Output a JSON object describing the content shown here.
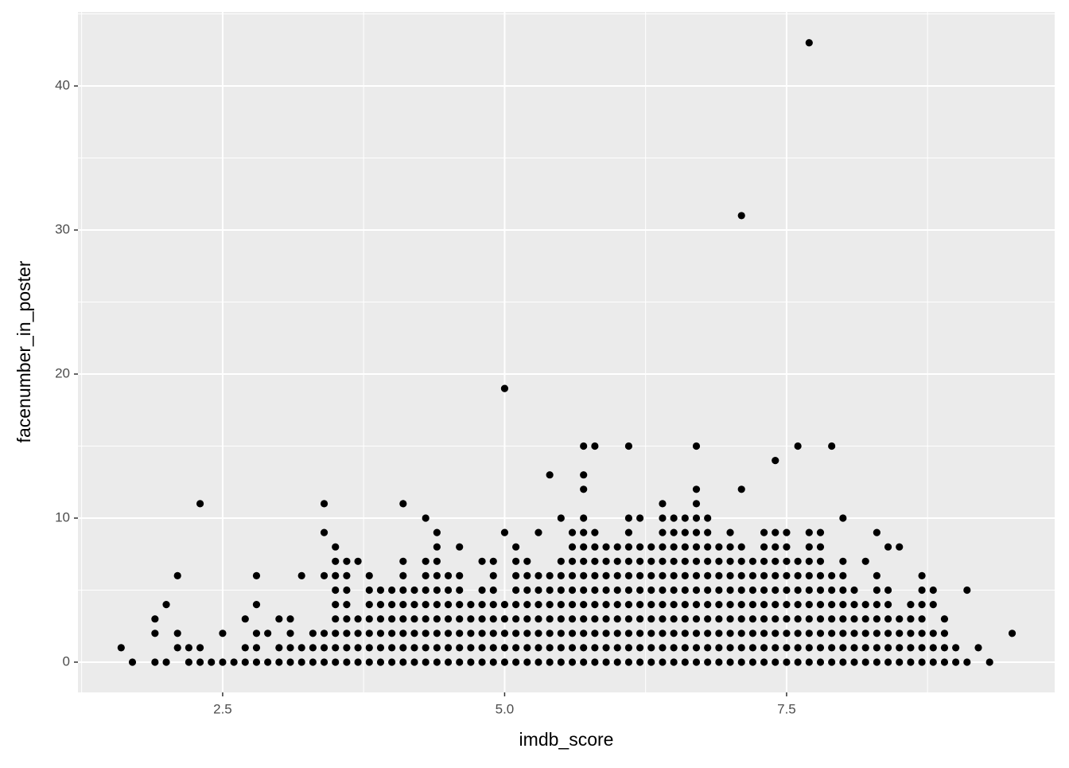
{
  "chart_data": {
    "type": "scatter",
    "x_label": "imdb_score",
    "y_label": "facenumber_in_poster",
    "xlim": [
      1.217,
      9.877
    ],
    "ylim": [
      -2.1,
      45.14
    ],
    "xticks": [
      2.5,
      {
        "value": 5,
        "label": "5.0"
      },
      7.5
    ],
    "yticks": [
      0,
      10,
      20,
      30,
      40
    ],
    "grid": true,
    "color": "#000000",
    "x": [
      1.6,
      1.7,
      1.9,
      1.9,
      1.9,
      2.0,
      2.0,
      2.1,
      2.1,
      2.1,
      2.2,
      2.2,
      2.3,
      2.3,
      2.3,
      2.4,
      2.5,
      2.5,
      2.6,
      2.7,
      2.7,
      2.7,
      2.8,
      2.8,
      2.8,
      2.8,
      2.8,
      2.9,
      2.9,
      3.0,
      3.0,
      3.0,
      3.1,
      3.1,
      3.1,
      3.1,
      3.2,
      3.2,
      3.2,
      3.3,
      3.3,
      3.3,
      3.4,
      3.4,
      3.4,
      3.4,
      3.4,
      3.4,
      3.5,
      3.5,
      3.5,
      3.5,
      3.5,
      3.5,
      3.5,
      3.5,
      3.5,
      3.6,
      3.6,
      3.6,
      3.6,
      3.6,
      3.6,
      3.6,
      3.6,
      3.7,
      3.7,
      3.7,
      3.7,
      3.7,
      3.8,
      3.8,
      3.8,
      3.8,
      3.8,
      3.8,
      3.8,
      3.9,
      3.9,
      3.9,
      3.9,
      3.9,
      3.9,
      4.0,
      4.0,
      4.0,
      4.0,
      4.0,
      4.0,
      4.1,
      4.1,
      4.1,
      4.1,
      4.1,
      4.1,
      4.1,
      4.1,
      4.1,
      4.2,
      4.2,
      4.2,
      4.2,
      4.2,
      4.2,
      4.3,
      4.3,
      4.3,
      4.3,
      4.3,
      4.3,
      4.3,
      4.3,
      4.3,
      4.4,
      4.4,
      4.4,
      4.4,
      4.4,
      4.4,
      4.4,
      4.4,
      4.4,
      4.4,
      4.5,
      4.5,
      4.5,
      4.5,
      4.5,
      4.5,
      4.5,
      4.6,
      4.6,
      4.6,
      4.6,
      4.6,
      4.6,
      4.6,
      4.6,
      4.7,
      4.7,
      4.7,
      4.7,
      4.7,
      4.8,
      4.8,
      4.8,
      4.8,
      4.8,
      4.8,
      4.8,
      4.9,
      4.9,
      4.9,
      4.9,
      4.9,
      4.9,
      4.9,
      4.9,
      5.0,
      5.0,
      5.0,
      5.0,
      5.0,
      5.0,
      5.0,
      5.1,
      5.1,
      5.1,
      5.1,
      5.1,
      5.1,
      5.1,
      5.1,
      5.1,
      5.2,
      5.2,
      5.2,
      5.2,
      5.2,
      5.2,
      5.2,
      5.2,
      5.3,
      5.3,
      5.3,
      5.3,
      5.3,
      5.3,
      5.3,
      5.3,
      5.4,
      5.4,
      5.4,
      5.4,
      5.4,
      5.4,
      5.4,
      5.4,
      5.5,
      5.5,
      5.5,
      5.5,
      5.5,
      5.5,
      5.5,
      5.5,
      5.5,
      5.6,
      5.6,
      5.6,
      5.6,
      5.6,
      5.6,
      5.6,
      5.6,
      5.6,
      5.6,
      5.7,
      5.7,
      5.7,
      5.7,
      5.7,
      5.7,
      5.7,
      5.7,
      5.7,
      5.7,
      5.7,
      5.7,
      5.7,
      5.7,
      5.8,
      5.8,
      5.8,
      5.8,
      5.8,
      5.8,
      5.8,
      5.8,
      5.8,
      5.8,
      5.8,
      5.9,
      5.9,
      5.9,
      5.9,
      5.9,
      5.9,
      5.9,
      5.9,
      5.9,
      6.0,
      6.0,
      6.0,
      6.0,
      6.0,
      6.0,
      6.0,
      6.0,
      6.0,
      6.1,
      6.1,
      6.1,
      6.1,
      6.1,
      6.1,
      6.1,
      6.1,
      6.1,
      6.1,
      6.1,
      6.1,
      6.2,
      6.2,
      6.2,
      6.2,
      6.2,
      6.2,
      6.2,
      6.2,
      6.2,
      6.2,
      6.3,
      6.3,
      6.3,
      6.3,
      6.3,
      6.3,
      6.3,
      6.3,
      6.3,
      6.4,
      6.4,
      6.4,
      6.4,
      6.4,
      6.4,
      6.4,
      6.4,
      6.4,
      6.4,
      6.4,
      6.4,
      6.5,
      6.5,
      6.5,
      6.5,
      6.5,
      6.5,
      6.5,
      6.5,
      6.5,
      6.5,
      6.5,
      6.6,
      6.6,
      6.6,
      6.6,
      6.6,
      6.6,
      6.6,
      6.6,
      6.6,
      6.6,
      6.6,
      6.7,
      6.7,
      6.7,
      6.7,
      6.7,
      6.7,
      6.7,
      6.7,
      6.7,
      6.7,
      6.7,
      6.7,
      6.7,
      6.7,
      6.8,
      6.8,
      6.8,
      6.8,
      6.8,
      6.8,
      6.8,
      6.8,
      6.8,
      6.8,
      6.8,
      6.9,
      6.9,
      6.9,
      6.9,
      6.9,
      6.9,
      6.9,
      6.9,
      6.9,
      7.0,
      7.0,
      7.0,
      7.0,
      7.0,
      7.0,
      7.0,
      7.0,
      7.0,
      7.0,
      7.1,
      7.1,
      7.1,
      7.1,
      7.1,
      7.1,
      7.1,
      7.1,
      7.1,
      7.1,
      7.1,
      7.2,
      7.2,
      7.2,
      7.2,
      7.2,
      7.2,
      7.2,
      7.2,
      7.3,
      7.3,
      7.3,
      7.3,
      7.3,
      7.3,
      7.3,
      7.3,
      7.3,
      7.3,
      7.4,
      7.4,
      7.4,
      7.4,
      7.4,
      7.4,
      7.4,
      7.4,
      7.4,
      7.4,
      7.4,
      7.5,
      7.5,
      7.5,
      7.5,
      7.5,
      7.5,
      7.5,
      7.5,
      7.5,
      7.5,
      7.6,
      7.6,
      7.6,
      7.6,
      7.6,
      7.6,
      7.6,
      7.6,
      7.6,
      7.7,
      7.7,
      7.7,
      7.7,
      7.7,
      7.7,
      7.7,
      7.7,
      7.7,
      7.7,
      7.7,
      7.8,
      7.8,
      7.8,
      7.8,
      7.8,
      7.8,
      7.8,
      7.8,
      7.8,
      7.8,
      7.9,
      7.9,
      7.9,
      7.9,
      7.9,
      7.9,
      7.9,
      7.9,
      8.0,
      8.0,
      8.0,
      8.0,
      8.0,
      8.0,
      8.0,
      8.0,
      8.0,
      8.1,
      8.1,
      8.1,
      8.1,
      8.1,
      8.1,
      8.2,
      8.2,
      8.2,
      8.2,
      8.2,
      8.2,
      8.3,
      8.3,
      8.3,
      8.3,
      8.3,
      8.3,
      8.3,
      8.3,
      8.4,
      8.4,
      8.4,
      8.4,
      8.4,
      8.4,
      8.4,
      8.5,
      8.5,
      8.5,
      8.5,
      8.5,
      8.6,
      8.6,
      8.6,
      8.6,
      8.6,
      8.7,
      8.7,
      8.7,
      8.7,
      8.7,
      8.7,
      8.7,
      8.8,
      8.8,
      8.8,
      8.8,
      8.8,
      8.9,
      8.9,
      8.9,
      8.9,
      9.0,
      9.0,
      9.1,
      9.1,
      9.2,
      9.3,
      9.5
    ],
    "values": [
      1,
      0,
      0,
      2,
      3,
      0,
      4,
      1,
      2,
      6,
      0,
      1,
      0,
      1,
      11,
      0,
      0,
      2,
      0,
      0,
      1,
      3,
      0,
      1,
      2,
      4,
      6,
      0,
      2,
      0,
      1,
      3,
      0,
      1,
      2,
      3,
      0,
      1,
      6,
      0,
      1,
      2,
      0,
      1,
      2,
      6,
      9,
      11,
      0,
      1,
      2,
      3,
      4,
      5,
      6,
      7,
      8,
      0,
      1,
      2,
      3,
      4,
      5,
      6,
      7,
      0,
      1,
      2,
      3,
      7,
      0,
      1,
      2,
      3,
      4,
      5,
      6,
      0,
      1,
      2,
      3,
      4,
      5,
      0,
      1,
      2,
      3,
      4,
      5,
      0,
      1,
      2,
      3,
      4,
      5,
      6,
      7,
      11,
      0,
      1,
      2,
      3,
      4,
      5,
      0,
      1,
      2,
      3,
      4,
      5,
      6,
      7,
      10,
      0,
      1,
      2,
      3,
      4,
      5,
      6,
      7,
      8,
      9,
      0,
      1,
      2,
      3,
      4,
      5,
      6,
      0,
      1,
      2,
      3,
      4,
      5,
      6,
      8,
      0,
      1,
      2,
      3,
      4,
      0,
      1,
      2,
      3,
      4,
      5,
      7,
      0,
      1,
      2,
      3,
      4,
      5,
      6,
      7,
      0,
      1,
      2,
      3,
      4,
      9,
      19,
      0,
      1,
      2,
      3,
      4,
      5,
      6,
      7,
      8,
      0,
      1,
      2,
      3,
      4,
      5,
      6,
      7,
      0,
      1,
      2,
      3,
      4,
      5,
      6,
      9,
      0,
      1,
      2,
      3,
      4,
      5,
      6,
      13,
      0,
      1,
      2,
      3,
      4,
      5,
      6,
      7,
      10,
      0,
      1,
      2,
      3,
      4,
      5,
      6,
      7,
      8,
      9,
      0,
      1,
      2,
      3,
      4,
      5,
      6,
      7,
      8,
      9,
      10,
      12,
      13,
      15,
      0,
      1,
      2,
      3,
      4,
      5,
      6,
      7,
      8,
      9,
      15,
      0,
      1,
      2,
      3,
      4,
      5,
      6,
      7,
      8,
      0,
      1,
      2,
      3,
      4,
      5,
      6,
      7,
      8,
      0,
      1,
      2,
      3,
      4,
      5,
      6,
      7,
      8,
      9,
      10,
      15,
      0,
      1,
      2,
      3,
      4,
      5,
      6,
      7,
      8,
      10,
      0,
      1,
      2,
      3,
      4,
      5,
      6,
      7,
      8,
      0,
      1,
      2,
      3,
      4,
      5,
      6,
      7,
      8,
      9,
      10,
      11,
      0,
      1,
      2,
      3,
      4,
      5,
      6,
      7,
      8,
      9,
      10,
      0,
      1,
      2,
      3,
      4,
      5,
      6,
      7,
      8,
      9,
      10,
      0,
      1,
      2,
      3,
      4,
      5,
      6,
      7,
      8,
      9,
      10,
      11,
      12,
      15,
      0,
      1,
      2,
      3,
      4,
      5,
      6,
      7,
      8,
      9,
      10,
      0,
      1,
      2,
      3,
      4,
      5,
      6,
      7,
      8,
      0,
      1,
      2,
      3,
      4,
      5,
      6,
      7,
      8,
      9,
      0,
      1,
      2,
      3,
      4,
      5,
      6,
      7,
      8,
      12,
      31,
      0,
      1,
      2,
      3,
      4,
      5,
      6,
      7,
      0,
      1,
      2,
      3,
      4,
      5,
      6,
      7,
      8,
      9,
      0,
      1,
      2,
      3,
      4,
      5,
      6,
      7,
      8,
      9,
      14,
      0,
      1,
      2,
      3,
      4,
      5,
      6,
      7,
      8,
      9,
      0,
      1,
      2,
      3,
      4,
      5,
      6,
      7,
      15,
      0,
      1,
      2,
      3,
      4,
      5,
      6,
      7,
      8,
      9,
      43,
      0,
      1,
      2,
      3,
      4,
      5,
      6,
      7,
      8,
      9,
      0,
      1,
      2,
      3,
      4,
      5,
      6,
      15,
      0,
      1,
      2,
      3,
      4,
      5,
      6,
      7,
      10,
      0,
      1,
      2,
      3,
      4,
      5,
      0,
      1,
      2,
      3,
      4,
      7,
      0,
      1,
      2,
      3,
      4,
      5,
      6,
      9,
      0,
      1,
      2,
      3,
      4,
      5,
      8,
      0,
      1,
      2,
      3,
      8,
      0,
      1,
      2,
      3,
      4,
      0,
      1,
      2,
      3,
      4,
      5,
      6,
      0,
      1,
      2,
      4,
      5,
      0,
      1,
      2,
      3,
      0,
      1,
      0,
      5,
      1,
      0,
      2
    ]
  }
}
